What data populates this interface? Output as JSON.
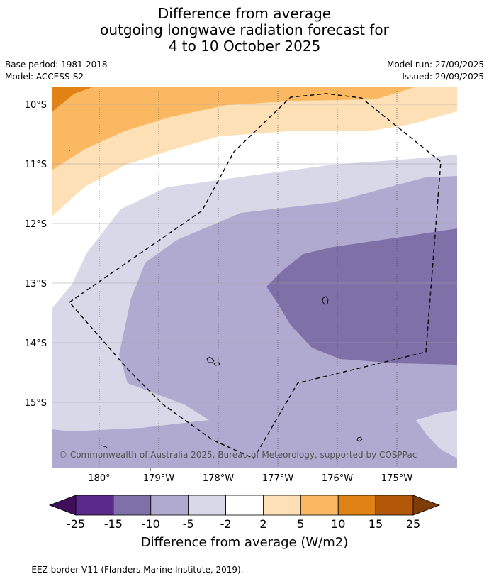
{
  "title": {
    "line1": "Difference from average",
    "line2": "outgoing longwave radiation forecast for",
    "line3": "4 to 10 October 2025"
  },
  "meta": {
    "base_period": "Base period: 1981-2018",
    "model": "Model: ACCESS-S2",
    "model_run": "Model run: 27/09/2025",
    "issued": "Issued: 29/09/2025"
  },
  "map": {
    "lat_labels": [
      "10°S",
      "11°S",
      "12°S",
      "13°S",
      "14°S",
      "15°S"
    ],
    "lon_labels": [
      "180°",
      "179°W",
      "178°W",
      "177°W",
      "176°W",
      "175°W"
    ],
    "copyright": "© Commonwealth of Australia 2025, Bureau of Meteorology, supported by COSPPac"
  },
  "colorbar": {
    "ticks": [
      "-25",
      "-15",
      "-10",
      "-5",
      "-2",
      "2",
      "5",
      "10",
      "15",
      "25"
    ],
    "colors": [
      "#3f0f5a",
      "#5a2a8a",
      "#7f71a8",
      "#b1aad0",
      "#d8d8e8",
      "#ffffff",
      "#fee0b6",
      "#fbb862",
      "#e08214",
      "#b35806",
      "#7f3b08"
    ],
    "label": "Difference from average (W/m2)"
  },
  "footer": {
    "legend": "--  --  -- EEZ border V11 (Flanders Marine Institute, 2019)."
  }
}
